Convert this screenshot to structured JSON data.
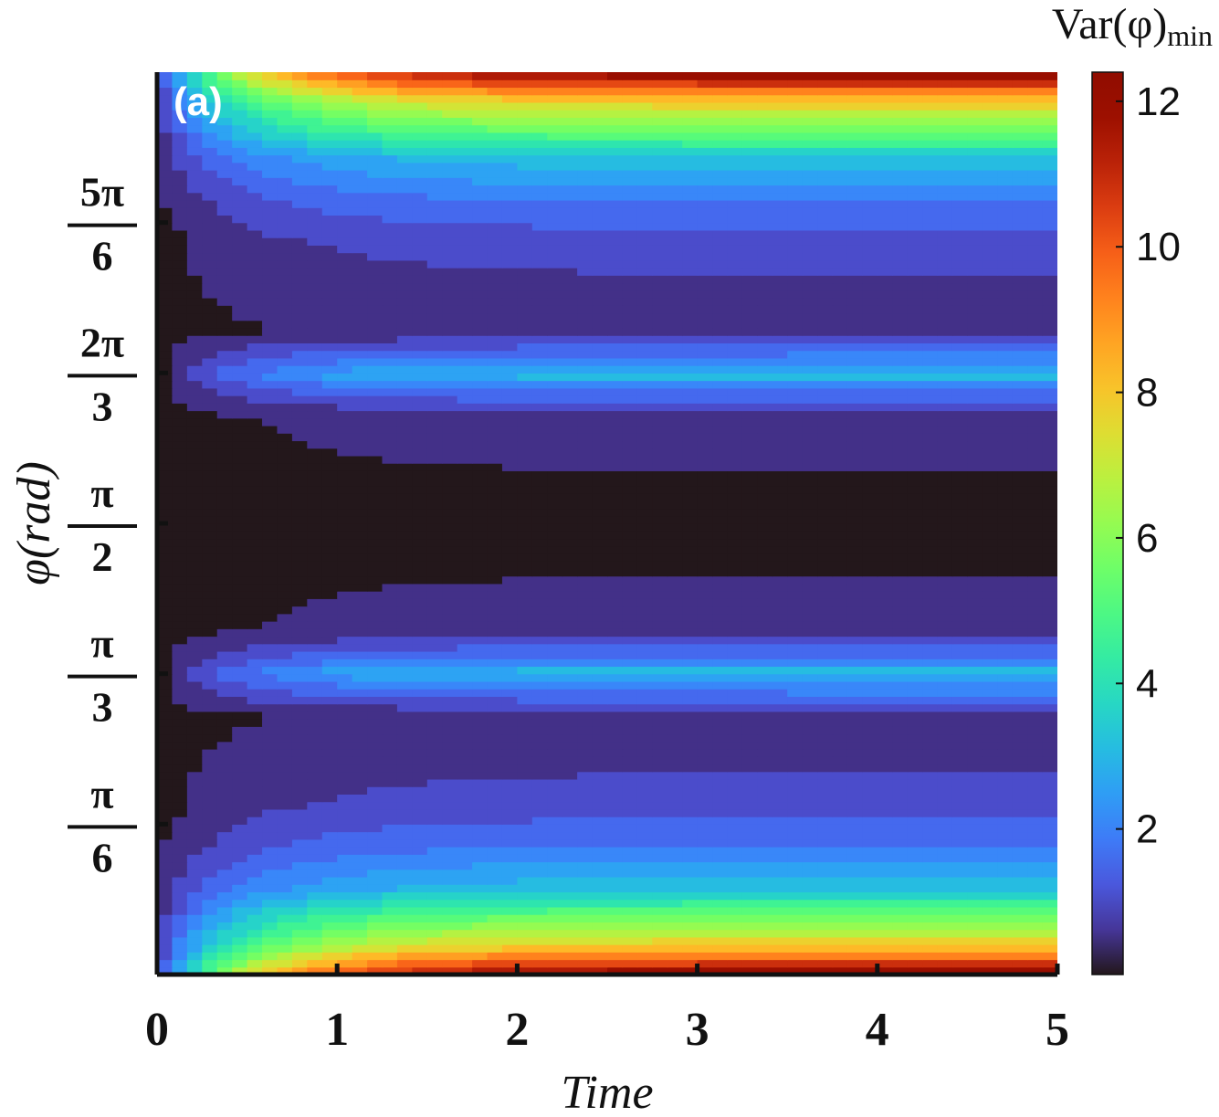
{
  "chart_data": {
    "type": "heatmap",
    "panel_label": "(a)",
    "xlabel": "Time",
    "ylabel": "φ(rad)",
    "xlim": [
      0,
      5
    ],
    "ylim": [
      0,
      3.1416
    ],
    "x_ticks": [
      {
        "value": 0,
        "label": "0"
      },
      {
        "value": 1,
        "label": "1"
      },
      {
        "value": 2,
        "label": "2"
      },
      {
        "value": 3,
        "label": "3"
      },
      {
        "value": 4,
        "label": "4"
      },
      {
        "value": 5,
        "label": "5"
      }
    ],
    "y_ticks": [
      {
        "value": 0.5236,
        "num": "π",
        "den": "6"
      },
      {
        "value": 1.0472,
        "num": "π",
        "den": "3"
      },
      {
        "value": 1.5708,
        "num": "π",
        "den": "2"
      },
      {
        "value": 2.0944,
        "num": "2π",
        "den": "3"
      },
      {
        "value": 2.618,
        "num": "5π",
        "den": "6"
      }
    ],
    "colorbar": {
      "title": "Var(φ)",
      "title_sub": "min",
      "min": 0,
      "max": 12.4,
      "ticks": [
        2,
        4,
        6,
        8,
        10,
        12
      ],
      "colormap": "turbo"
    },
    "long_time_profile": [
      {
        "phi": 0.0,
        "value": 12.4
      },
      {
        "phi": 0.1,
        "value": 8.0
      },
      {
        "phi": 0.3,
        "value": 3.2
      },
      {
        "phi": 0.45,
        "value": 1.8
      },
      {
        "phi": 0.6,
        "value": 1.0
      },
      {
        "phi": 0.78,
        "value": 0.6
      },
      {
        "phi": 0.9,
        "value": 0.35
      },
      {
        "phi": 1.02,
        "value": 2.5
      },
      {
        "phi": 1.05,
        "value": 3.2
      },
      {
        "phi": 1.1,
        "value": 2.0
      },
      {
        "phi": 1.2,
        "value": 0.4
      },
      {
        "phi": 1.4,
        "value": 0.25
      },
      {
        "phi": 1.5708,
        "value": 0.05
      }
    ]
  }
}
